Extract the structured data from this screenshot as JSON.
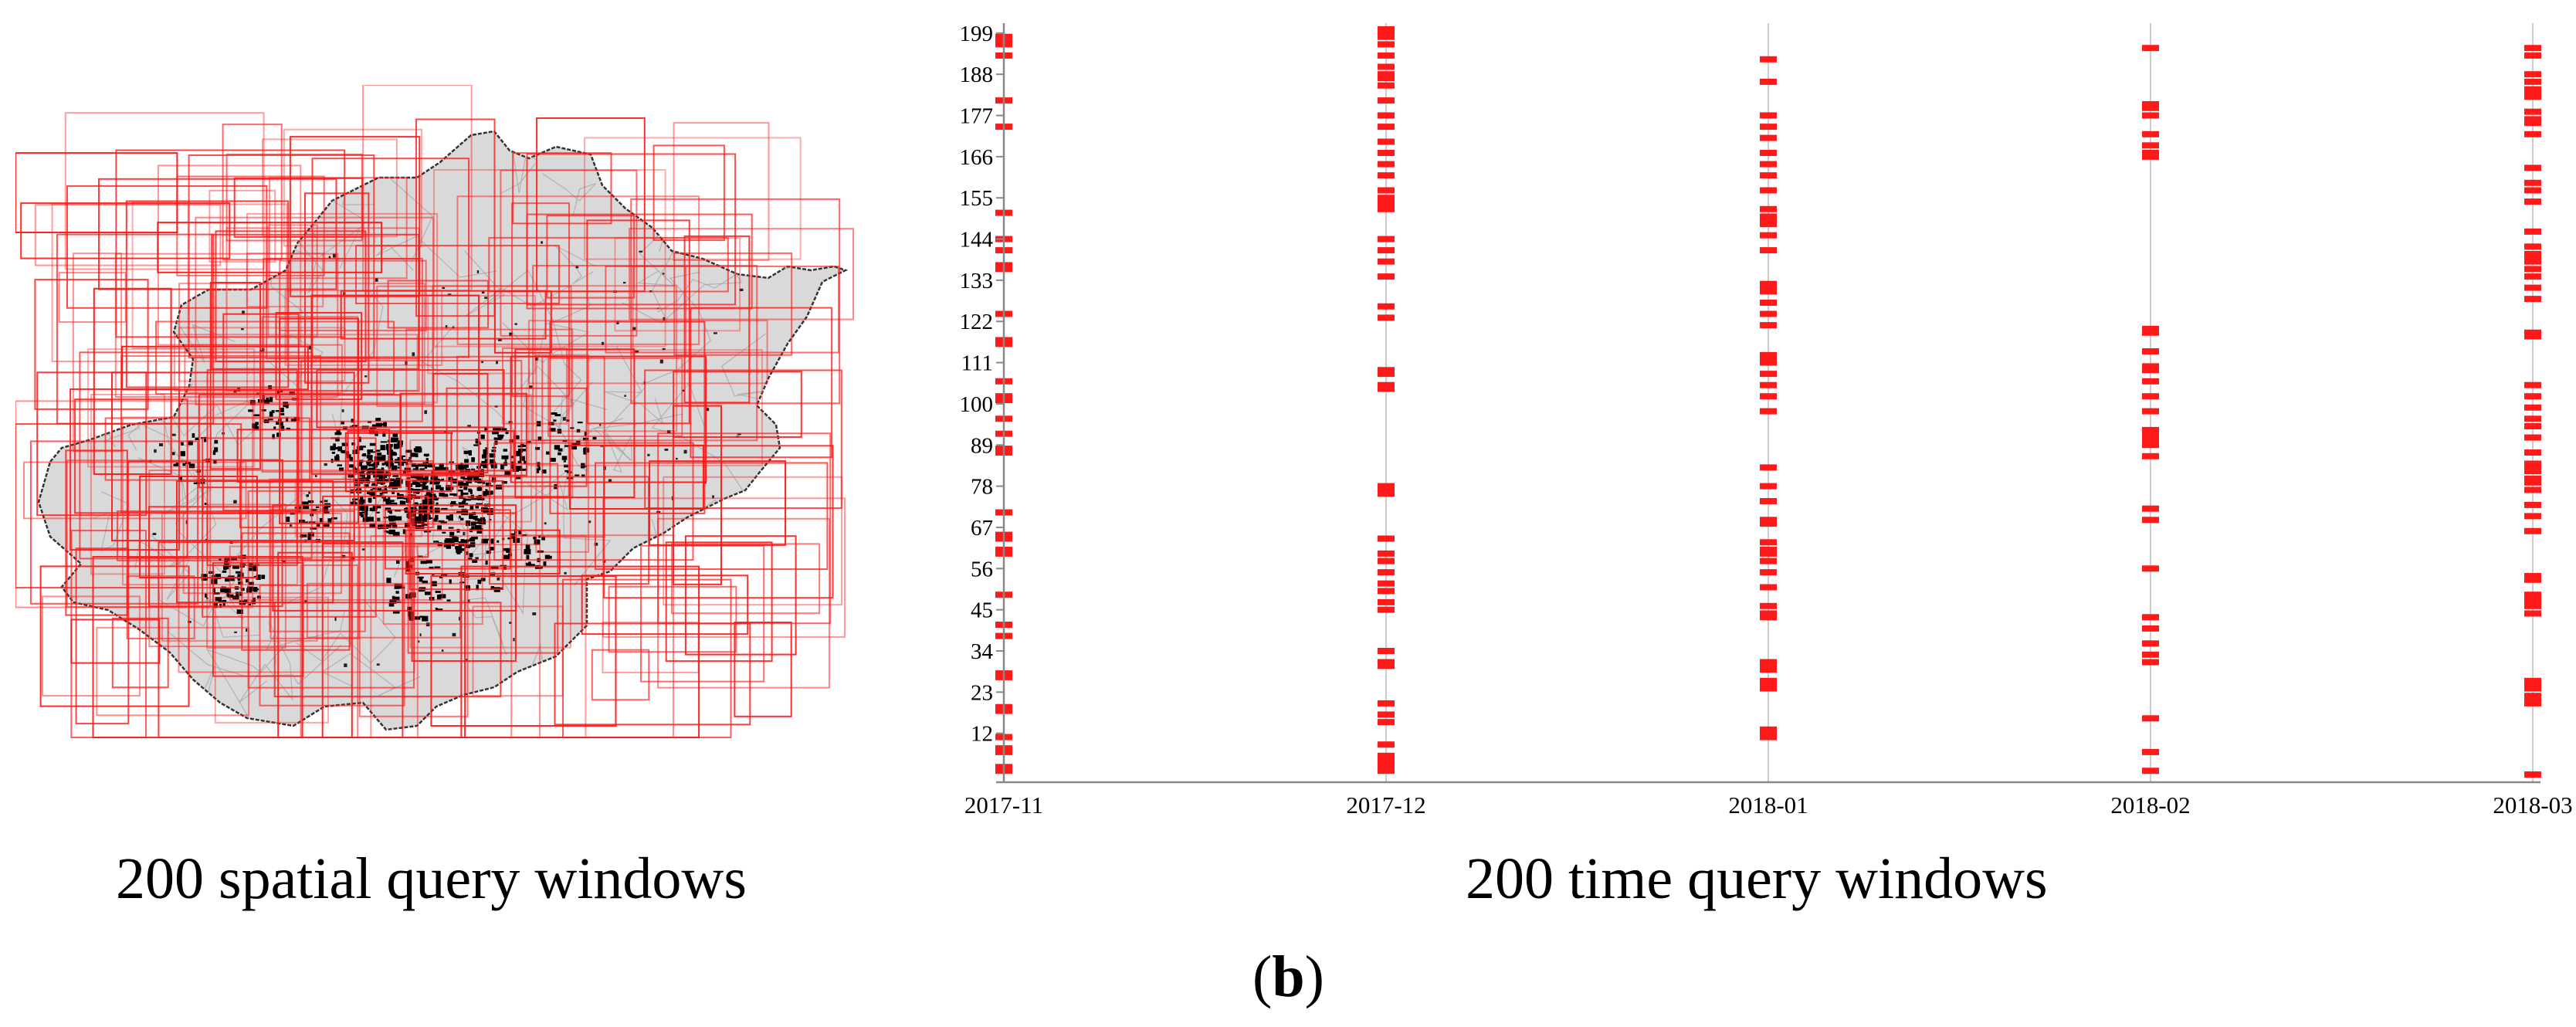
{
  "figure": {
    "left_caption": "200 spatial query windows",
    "right_caption": "200 time query windows",
    "panel_label_open": "(",
    "panel_label_letter": "b",
    "panel_label_close": ")"
  },
  "colors": {
    "window_red": "#ff1a1a",
    "region_fill": "#d9d9d9",
    "region_outline": "#333333",
    "road_gray": "#a8a8a8",
    "poi_black": "#000000",
    "axis": "#888888",
    "gridline": "#cccccc"
  },
  "map": {
    "description_icon": "beijing-region-map-icon",
    "window_count": 200
  },
  "chart_data": {
    "type": "scatter",
    "marker": "horizontal-red-dash",
    "x_ticks": [
      "2017-11",
      "2017-12",
      "2018-01",
      "2018-02",
      "2018-03"
    ],
    "y_ticks": [
      12,
      23,
      34,
      45,
      56,
      67,
      78,
      89,
      100,
      111,
      122,
      133,
      144,
      155,
      166,
      177,
      188,
      199
    ],
    "ylim": [
      1,
      200
    ],
    "grid": "vertical-at-x-ticks",
    "series": [
      {
        "x": "2017-11",
        "values": [
          2,
          3,
          7,
          8,
          11,
          18,
          19,
          27,
          28,
          38,
          41,
          49,
          60,
          61,
          64,
          65,
          71,
          87,
          88,
          92,
          96,
          101,
          102,
          106,
          116,
          117,
          124,
          136,
          137,
          141,
          144,
          151,
          174,
          181,
          193,
          196,
          197,
          198
        ]
      },
      {
        "x": "2017-12",
        "values": [
          2,
          3,
          4,
          5,
          6,
          9,
          15,
          17,
          20,
          30,
          31,
          34,
          45,
          47,
          50,
          52,
          55,
          58,
          60,
          64,
          76,
          77,
          78,
          104,
          105,
          108,
          109,
          123,
          126,
          134,
          138,
          141,
          144,
          152,
          153,
          154,
          155,
          157,
          161,
          164,
          167,
          170,
          174,
          177,
          181,
          185,
          187,
          188,
          190,
          193,
          196,
          198,
          199,
          200
        ]
      },
      {
        "x": "2018-01",
        "values": [
          11,
          12,
          13,
          24,
          25,
          26,
          29,
          30,
          31,
          43,
          44,
          46,
          51,
          55,
          58,
          60,
          61,
          63,
          68,
          69,
          74,
          78,
          83,
          98,
          102,
          105,
          108,
          111,
          112,
          113,
          121,
          124,
          127,
          130,
          131,
          132,
          141,
          145,
          148,
          149,
          150,
          152,
          157,
          161,
          164,
          167,
          171,
          174,
          177,
          186,
          192
        ]
      },
      {
        "x": "2018-02",
        "values": [
          2,
          7,
          16,
          31,
          33,
          36,
          40,
          43,
          56,
          69,
          72,
          86,
          89,
          90,
          91,
          92,
          93,
          98,
          102,
          106,
          109,
          110,
          114,
          119,
          120,
          166,
          167,
          169,
          172,
          177,
          179,
          180,
          195
        ]
      },
      {
        "x": "2018-03",
        "values": [
          1,
          20,
          21,
          22,
          24,
          25,
          26,
          44,
          46,
          47,
          48,
          49,
          53,
          54,
          66,
          70,
          73,
          77,
          79,
          80,
          82,
          83,
          84,
          87,
          91,
          94,
          96,
          99,
          102,
          105,
          118,
          119,
          128,
          131,
          134,
          136,
          138,
          139,
          140,
          142,
          146,
          154,
          157,
          159,
          163,
          172,
          175,
          176,
          178,
          182,
          183,
          184,
          186,
          188,
          193,
          195
        ]
      }
    ]
  }
}
